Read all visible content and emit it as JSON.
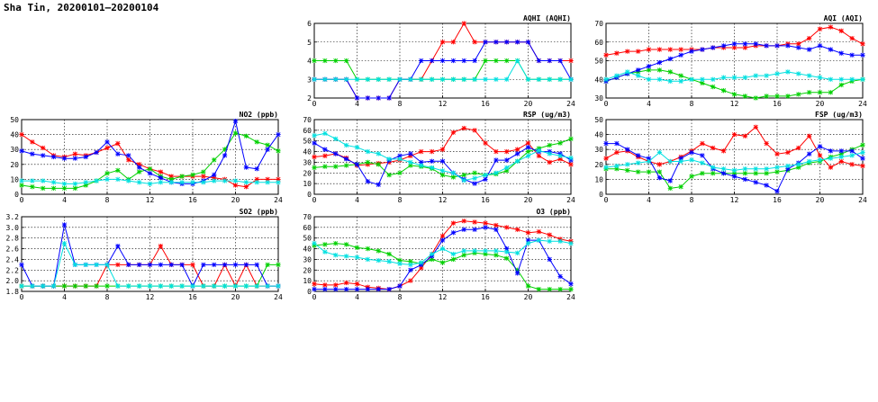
{
  "page_title": "Sha Tin, 20200101–20200104",
  "series_colors": [
    "#ff0000",
    "#00d000",
    "#0000ff",
    "#00e0e0"
  ],
  "chart_data": [
    {
      "type": "line",
      "title": "AQHI (AQHI)",
      "x": [
        0,
        1,
        2,
        3,
        4,
        5,
        6,
        7,
        8,
        9,
        10,
        11,
        12,
        13,
        14,
        15,
        16,
        17,
        18,
        19,
        20,
        21,
        22,
        23,
        24
      ],
      "xlim": [
        0,
        24
      ],
      "xticks": [
        0,
        4,
        8,
        12,
        16,
        20,
        24
      ],
      "ylim": [
        2,
        6
      ],
      "yticks": [
        2,
        3,
        4,
        5,
        6
      ],
      "ytick_labels": [
        "2",
        "3",
        "4",
        "5",
        "6"
      ],
      "grid": true,
      "series": [
        {
          "color": "#ff0000",
          "values": [
            3,
            3,
            3,
            3,
            2,
            2,
            2,
            2,
            3,
            3,
            3,
            4,
            5,
            5,
            6,
            5,
            5,
            5,
            5,
            5,
            5,
            4,
            4,
            4,
            4
          ]
        },
        {
          "color": "#00d000",
          "values": [
            4,
            4,
            4,
            4,
            3,
            3,
            3,
            3,
            3,
            3,
            3,
            3,
            3,
            3,
            3,
            3,
            4,
            4,
            4,
            4,
            3,
            3,
            3,
            3,
            3
          ]
        },
        {
          "color": "#0000ff",
          "values": [
            3,
            3,
            3,
            3,
            2,
            2,
            2,
            2,
            3,
            3,
            4,
            4,
            4,
            4,
            4,
            4,
            5,
            5,
            5,
            5,
            5,
            4,
            4,
            4,
            3
          ]
        },
        {
          "color": "#00e0e0",
          "values": [
            3,
            3,
            3,
            3,
            3,
            3,
            3,
            3,
            3,
            3,
            3,
            3,
            3,
            3,
            3,
            3,
            3,
            3,
            3,
            4,
            3,
            3,
            3,
            3,
            3
          ]
        }
      ]
    },
    {
      "type": "line",
      "title": "AQI (AQI)",
      "x": [
        0,
        1,
        2,
        3,
        4,
        5,
        6,
        7,
        8,
        9,
        10,
        11,
        12,
        13,
        14,
        15,
        16,
        17,
        18,
        19,
        20,
        21,
        22,
        23,
        24
      ],
      "xlim": [
        0,
        24
      ],
      "xticks": [
        0,
        4,
        8,
        12,
        16,
        20,
        24
      ],
      "ylim": [
        30,
        70
      ],
      "yticks": [
        30,
        40,
        50,
        60,
        70
      ],
      "ytick_labels": [
        "30",
        "40",
        "50",
        "60",
        "70"
      ],
      "grid": true,
      "series": [
        {
          "color": "#ff0000",
          "values": [
            53,
            54,
            55,
            55,
            56,
            56,
            56,
            56,
            56,
            56,
            57,
            57,
            57,
            57,
            58,
            58,
            58,
            59,
            59,
            62,
            67,
            68,
            66,
            62,
            59
          ]
        },
        {
          "color": "#00d000",
          "values": [
            39,
            41,
            43,
            44,
            45,
            45,
            44,
            42,
            40,
            38,
            36,
            34,
            32,
            31,
            30,
            31,
            31,
            31,
            32,
            33,
            33,
            33,
            37,
            39,
            40
          ]
        },
        {
          "color": "#0000ff",
          "values": [
            39,
            41,
            43,
            45,
            47,
            49,
            51,
            53,
            55,
            56,
            57,
            58,
            59,
            59,
            59,
            58,
            58,
            58,
            57,
            56,
            58,
            56,
            54,
            53,
            53
          ]
        },
        {
          "color": "#00e0e0",
          "values": [
            40,
            42,
            44,
            42,
            40,
            40,
            39,
            39,
            40,
            40,
            40,
            41,
            41,
            41,
            42,
            42,
            43,
            44,
            43,
            42,
            41,
            40,
            40,
            40,
            40
          ]
        }
      ]
    },
    {
      "type": "line",
      "title": "NO2 (ppb)",
      "x": [
        0,
        1,
        2,
        3,
        4,
        5,
        6,
        7,
        8,
        9,
        10,
        11,
        12,
        13,
        14,
        15,
        16,
        17,
        18,
        19,
        20,
        21,
        22,
        23,
        24
      ],
      "xlim": [
        0,
        24
      ],
      "xticks": [
        0,
        4,
        8,
        12,
        16,
        20,
        24
      ],
      "ylim": [
        0,
        50
      ],
      "yticks": [
        0,
        10,
        20,
        30,
        40,
        50
      ],
      "ytick_labels": [
        "0",
        "10",
        "20",
        "30",
        "40",
        "50"
      ],
      "grid": true,
      "series": [
        {
          "color": "#ff0000",
          "values": [
            40,
            35,
            31,
            26,
            25,
            27,
            26,
            28,
            31,
            34,
            23,
            20,
            17,
            15,
            12,
            12,
            12,
            12,
            11,
            10,
            6,
            5,
            10,
            10,
            10
          ]
        },
        {
          "color": "#00d000",
          "values": [
            6,
            5,
            4,
            4,
            4,
            4,
            6,
            9,
            14,
            16,
            10,
            15,
            17,
            12,
            10,
            12,
            13,
            15,
            23,
            30,
            41,
            39,
            35,
            33,
            29
          ]
        },
        {
          "color": "#0000ff",
          "values": [
            29,
            27,
            26,
            25,
            24,
            24,
            25,
            28,
            35,
            27,
            26,
            18,
            14,
            11,
            8,
            7,
            7,
            9,
            13,
            26,
            49,
            18,
            17,
            30,
            40
          ]
        },
        {
          "color": "#00e0e0",
          "values": [
            9,
            9,
            9,
            8,
            7,
            7,
            8,
            9,
            10,
            10,
            9,
            8,
            7,
            8,
            8,
            8,
            8,
            8,
            9,
            9,
            9,
            8,
            8,
            8,
            8
          ]
        }
      ]
    },
    {
      "type": "line",
      "title": "RSP (ug/m3)",
      "x": [
        0,
        1,
        2,
        3,
        4,
        5,
        6,
        7,
        8,
        9,
        10,
        11,
        12,
        13,
        14,
        15,
        16,
        17,
        18,
        19,
        20,
        21,
        22,
        23,
        24
      ],
      "xlim": [
        0,
        24
      ],
      "xticks": [
        0,
        4,
        8,
        12,
        16,
        20,
        24
      ],
      "ylim": [
        0,
        70
      ],
      "yticks": [
        0,
        10,
        20,
        30,
        40,
        50,
        60,
        70
      ],
      "ytick_labels": [
        "0",
        "10",
        "20",
        "30",
        "40",
        "50",
        "60",
        "70"
      ],
      "grid": true,
      "series": [
        {
          "color": "#ff0000",
          "values": [
            35,
            36,
            38,
            34,
            27,
            28,
            29,
            30,
            32,
            36,
            40,
            40,
            42,
            58,
            62,
            60,
            48,
            40,
            40,
            42,
            48,
            36,
            30,
            33,
            28
          ]
        },
        {
          "color": "#00d000",
          "values": [
            25,
            26,
            26,
            27,
            28,
            30,
            28,
            18,
            20,
            27,
            26,
            24,
            18,
            16,
            18,
            20,
            18,
            19,
            22,
            31,
            40,
            43,
            46,
            48,
            52
          ]
        },
        {
          "color": "#0000ff",
          "values": [
            48,
            42,
            38,
            33,
            28,
            12,
            9,
            32,
            36,
            38,
            30,
            31,
            31,
            20,
            14,
            10,
            14,
            32,
            32,
            38,
            44,
            40,
            40,
            38,
            32
          ]
        },
        {
          "color": "#00e0e0",
          "values": [
            55,
            57,
            52,
            46,
            44,
            40,
            38,
            33,
            33,
            30,
            27,
            25,
            22,
            20,
            13,
            15,
            18,
            20,
            25,
            31,
            36,
            41,
            38,
            36,
            34
          ]
        }
      ]
    },
    {
      "type": "line",
      "title": "FSP (ug/m3)",
      "x": [
        0,
        1,
        2,
        3,
        4,
        5,
        6,
        7,
        8,
        9,
        10,
        11,
        12,
        13,
        14,
        15,
        16,
        17,
        18,
        19,
        20,
        21,
        22,
        23,
        24
      ],
      "xlim": [
        0,
        24
      ],
      "xticks": [
        0,
        4,
        8,
        12,
        16,
        20,
        24
      ],
      "ylim": [
        0,
        50
      ],
      "yticks": [
        0,
        10,
        20,
        30,
        40,
        50
      ],
      "ytick_labels": [
        "0",
        "10",
        "20",
        "30",
        "40",
        "50"
      ],
      "grid": true,
      "series": [
        {
          "color": "#ff0000",
          "values": [
            24,
            28,
            29,
            25,
            22,
            20,
            22,
            25,
            29,
            34,
            31,
            29,
            40,
            39,
            45,
            34,
            27,
            28,
            31,
            39,
            26,
            18,
            22,
            20,
            19
          ]
        },
        {
          "color": "#00d000",
          "values": [
            17,
            17,
            16,
            15,
            15,
            15,
            4,
            5,
            12,
            14,
            14,
            14,
            14,
            14,
            14,
            14,
            15,
            16,
            18,
            21,
            22,
            25,
            27,
            30,
            33
          ]
        },
        {
          "color": "#0000ff",
          "values": [
            34,
            34,
            30,
            26,
            24,
            11,
            9,
            24,
            28,
            26,
            17,
            14,
            12,
            10,
            8,
            6,
            2,
            17,
            21,
            27,
            32,
            29,
            29,
            29,
            24
          ]
        },
        {
          "color": "#00e0e0",
          "values": [
            18,
            19,
            20,
            21,
            22,
            28,
            22,
            22,
            23,
            21,
            18,
            17,
            16,
            17,
            17,
            17,
            18,
            19,
            20,
            22,
            23,
            24,
            25,
            26,
            28
          ]
        }
      ]
    },
    {
      "type": "line",
      "title": "SO2 (ppb)",
      "x": [
        0,
        1,
        2,
        3,
        4,
        5,
        6,
        7,
        8,
        9,
        10,
        11,
        12,
        13,
        14,
        15,
        16,
        17,
        18,
        19,
        20,
        21,
        22,
        23,
        24
      ],
      "xlim": [
        0,
        24
      ],
      "xticks": [
        0,
        4,
        8,
        12,
        16,
        20,
        24
      ],
      "ylim": [
        1.8,
        3.2
      ],
      "yticks": [
        1.8,
        2.0,
        2.2,
        2.4,
        2.6,
        2.8,
        3.0,
        3.2
      ],
      "ytick_labels": [
        "1.8",
        "2.0",
        "2.2",
        "2.4",
        "2.6",
        "2.8",
        "3.0",
        "3.2"
      ],
      "grid": true,
      "series": [
        {
          "color": "#ff0000",
          "values": [
            1.9,
            1.9,
            1.9,
            1.9,
            1.9,
            1.9,
            1.9,
            1.9,
            2.3,
            2.3,
            2.3,
            2.3,
            2.3,
            2.65,
            2.3,
            2.3,
            2.3,
            1.9,
            1.9,
            2.3,
            1.9,
            2.3,
            1.9,
            1.9,
            1.9
          ]
        },
        {
          "color": "#00d000",
          "values": [
            1.9,
            1.9,
            1.9,
            1.9,
            1.9,
            1.9,
            1.9,
            1.9,
            1.9,
            1.9,
            1.9,
            1.9,
            1.9,
            1.9,
            1.9,
            1.9,
            1.9,
            1.9,
            1.9,
            1.9,
            1.9,
            1.9,
            1.9,
            2.3,
            2.3
          ]
        },
        {
          "color": "#0000ff",
          "values": [
            2.3,
            1.9,
            1.9,
            1.9,
            3.05,
            2.3,
            2.3,
            2.3,
            2.3,
            2.65,
            2.3,
            2.3,
            2.3,
            2.3,
            2.3,
            2.3,
            1.9,
            2.3,
            2.3,
            2.3,
            2.3,
            2.3,
            2.3,
            1.9,
            1.9
          ]
        },
        {
          "color": "#00e0e0",
          "values": [
            1.9,
            1.9,
            1.9,
            1.9,
            2.7,
            2.3,
            2.3,
            2.3,
            2.3,
            1.9,
            1.9,
            1.9,
            1.9,
            1.9,
            1.9,
            1.9,
            1.9,
            1.9,
            1.9,
            1.9,
            1.9,
            1.9,
            1.9,
            1.9,
            1.9
          ]
        }
      ]
    },
    {
      "type": "line",
      "title": "O3 (ppb)",
      "x": [
        0,
        1,
        2,
        3,
        4,
        5,
        6,
        7,
        8,
        9,
        10,
        11,
        12,
        13,
        14,
        15,
        16,
        17,
        18,
        19,
        20,
        21,
        22,
        23,
        24
      ],
      "xlim": [
        0,
        24
      ],
      "xticks": [
        0,
        4,
        8,
        12,
        16,
        20,
        24
      ],
      "ylim": [
        0,
        70
      ],
      "yticks": [
        0,
        10,
        20,
        30,
        40,
        50,
        60,
        70
      ],
      "ytick_labels": [
        "0",
        "10",
        "20",
        "30",
        "40",
        "50",
        "60",
        "70"
      ],
      "grid": true,
      "series": [
        {
          "color": "#ff0000",
          "values": [
            7,
            6,
            6,
            8,
            7,
            4,
            3,
            2,
            5,
            10,
            22,
            35,
            52,
            64,
            66,
            65,
            64,
            62,
            60,
            58,
            55,
            56,
            53,
            49,
            47
          ]
        },
        {
          "color": "#00d000",
          "values": [
            43,
            44,
            45,
            44,
            41,
            40,
            38,
            35,
            29,
            28,
            26,
            30,
            27,
            30,
            34,
            36,
            35,
            34,
            31,
            20,
            5,
            2,
            2,
            2,
            2
          ]
        },
        {
          "color": "#0000ff",
          "values": [
            2,
            2,
            2,
            2,
            2,
            2,
            2,
            2,
            5,
            20,
            25,
            33,
            48,
            55,
            58,
            58,
            60,
            58,
            40,
            17,
            48,
            48,
            30,
            14,
            7
          ]
        },
        {
          "color": "#00e0e0",
          "values": [
            45,
            37,
            34,
            33,
            32,
            30,
            29,
            28,
            26,
            25,
            27,
            35,
            40,
            35,
            38,
            38,
            38,
            38,
            37,
            36,
            45,
            48,
            47,
            47,
            45
          ]
        }
      ]
    }
  ]
}
